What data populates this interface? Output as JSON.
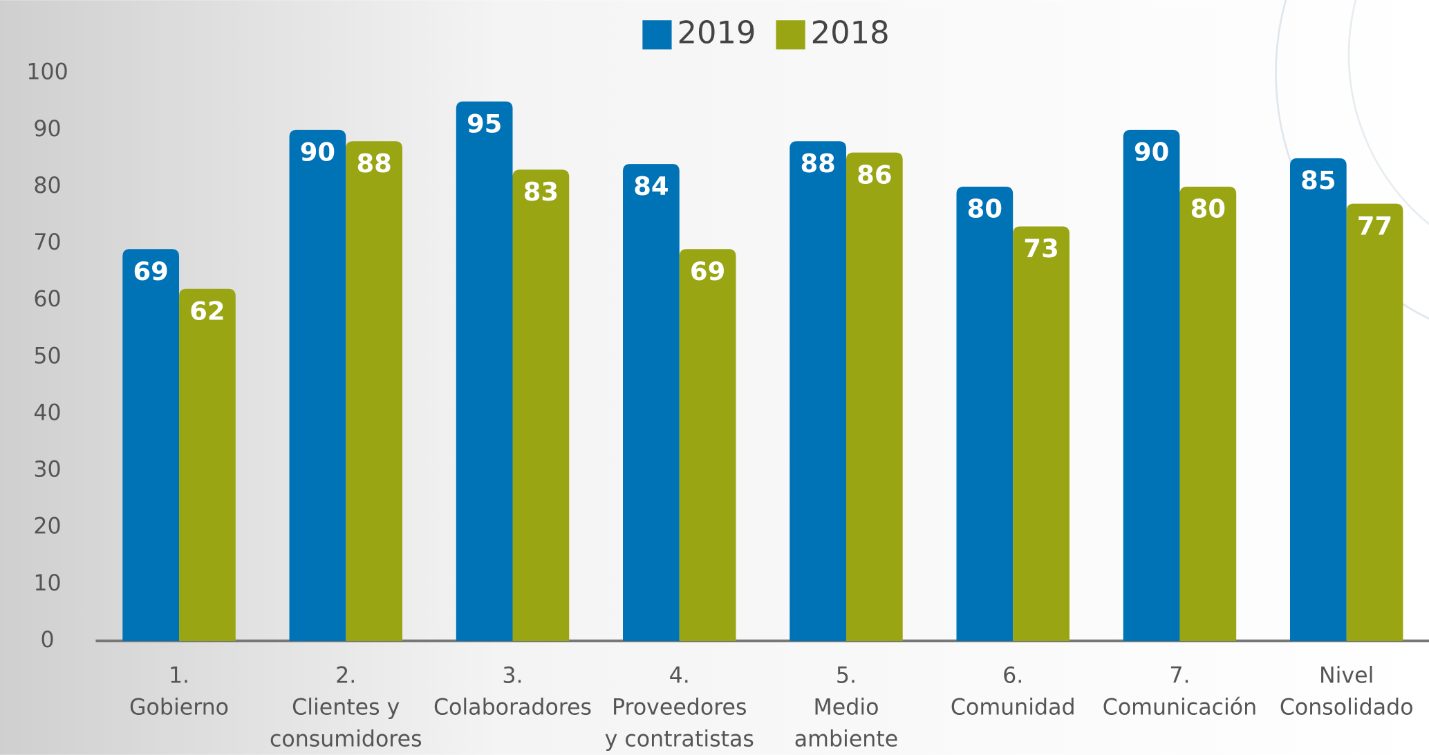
{
  "chart_data": {
    "type": "bar",
    "categories": [
      [
        "1.",
        "Gobierno"
      ],
      [
        "2.",
        "Clientes y",
        "consumidores"
      ],
      [
        "3.",
        "Colaboradores"
      ],
      [
        "4.",
        "Proveedores",
        "y contratistas"
      ],
      [
        "5.",
        "Medio",
        "ambiente"
      ],
      [
        "6.",
        "Comunidad"
      ],
      [
        "7.",
        "Comunicación"
      ],
      [
        "Nivel",
        "Consolidado"
      ]
    ],
    "series": [
      {
        "name": "2019",
        "color": "#0072b6",
        "values": [
          69,
          90,
          95,
          84,
          88,
          80,
          90,
          85
        ]
      },
      {
        "name": "2018",
        "color": "#9aa514",
        "values": [
          62,
          88,
          83,
          69,
          86,
          73,
          80,
          77
        ]
      }
    ],
    "ylim": [
      0,
      100
    ],
    "yticks": [
      0,
      10,
      20,
      30,
      40,
      50,
      60,
      70,
      80,
      90,
      100
    ],
    "grid": false,
    "legend": "top"
  }
}
